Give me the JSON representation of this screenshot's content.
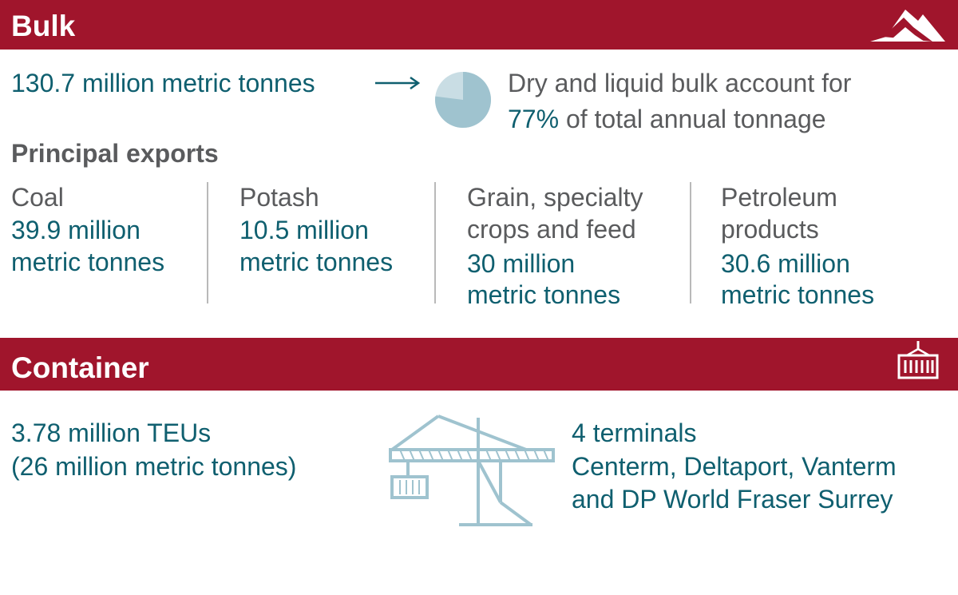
{
  "bulk": {
    "title": "Bulk",
    "icon": "bulk-mountain-icon",
    "tonnage": "130.7 million metric tonnes",
    "share_line1": "Dry and liquid bulk account for",
    "share_pct": "77%",
    "share_line2_rest": " of total annual tonnage",
    "share_fraction": 0.77,
    "exports_heading": "Principal exports",
    "exports": [
      {
        "name_lines": [
          "Coal"
        ],
        "value_lines": [
          "39.9 million",
          "metric tonnes"
        ]
      },
      {
        "name_lines": [
          "Potash"
        ],
        "value_lines": [
          "10.5 million",
          "metric tonnes"
        ]
      },
      {
        "name_lines": [
          "Grain, specialty",
          "crops and feed"
        ],
        "value_lines": [
          "30 million",
          "metric tonnes"
        ]
      },
      {
        "name_lines": [
          "Petroleum",
          "products"
        ],
        "value_lines": [
          "30.6 million",
          "metric tonnes"
        ]
      }
    ]
  },
  "container": {
    "title": "Container",
    "icon": "shipping-container-icon",
    "teus_line1": "3.78 million TEUs",
    "teus_line2": "(26 million metric tonnes)",
    "terminals_line1": "4 terminals",
    "terminals_line2": "Centerm, Deltaport, Vanterm",
    "terminals_line3": "and DP World Fraser Surrey",
    "illustration": "container-crane-icon"
  },
  "colors": {
    "band": "#a0152c",
    "teal": "#0f5f6f",
    "gray": "#5a5b5d",
    "pie_major": "#9fc3cf",
    "pie_minor": "#c9dde4"
  }
}
